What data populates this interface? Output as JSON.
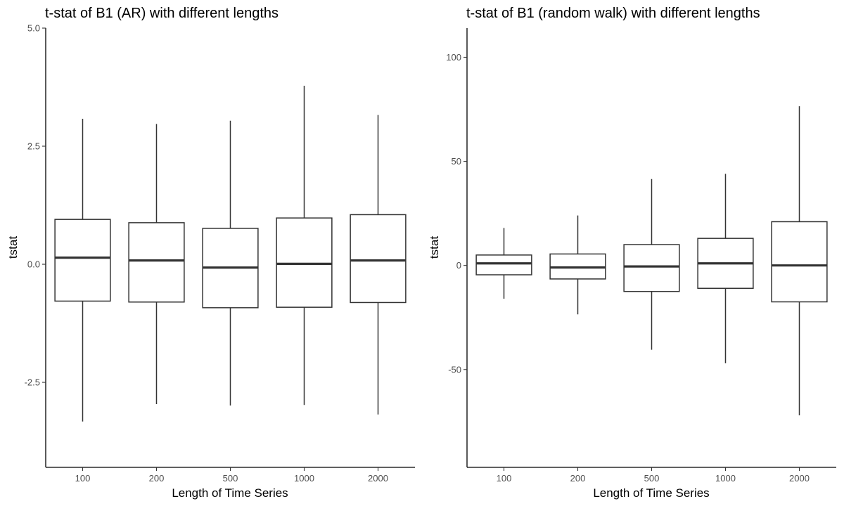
{
  "chart_data": [
    {
      "type": "box",
      "title": "t-stat of B1 (AR) with different lengths",
      "xlabel": "Length of Time Series",
      "ylabel": "tstat",
      "categories": [
        "100",
        "200",
        "500",
        "1000",
        "2000"
      ],
      "yticks": [
        5.0,
        2.5,
        0.0,
        -2.5
      ],
      "ytick_labels": [
        "5.0",
        "2.5",
        "0.0",
        "-2.5"
      ],
      "ylim": [
        -4.3,
        5.0
      ],
      "boxes": [
        {
          "min": -3.33,
          "q1": -0.78,
          "median": 0.14,
          "q3": 0.95,
          "max": 3.08
        },
        {
          "min": -2.96,
          "q1": -0.8,
          "median": 0.08,
          "q3": 0.88,
          "max": 2.97
        },
        {
          "min": -2.99,
          "q1": -0.92,
          "median": -0.07,
          "q3": 0.76,
          "max": 3.04
        },
        {
          "min": -2.98,
          "q1": -0.91,
          "median": 0.01,
          "q3": 0.98,
          "max": 3.78
        },
        {
          "min": -3.18,
          "q1": -0.81,
          "median": 0.08,
          "q3": 1.05,
          "max": 3.16
        }
      ],
      "grid": false,
      "legend": "none"
    },
    {
      "type": "box",
      "title": "t-stat of B1 (random walk) with different lengths",
      "xlabel": "Length of Time Series",
      "ylabel": "tstat",
      "categories": [
        "100",
        "200",
        "500",
        "1000",
        "2000"
      ],
      "yticks": [
        100,
        50,
        0,
        -50
      ],
      "ytick_labels": [
        "100",
        "50",
        "0",
        "-50"
      ],
      "ylim": [
        -97,
        114
      ],
      "boxes": [
        {
          "min": -16,
          "q1": -4.5,
          "median": 1,
          "q3": 5,
          "max": 18
        },
        {
          "min": -23.5,
          "q1": -6.5,
          "median": -1,
          "q3": 5.5,
          "max": 24
        },
        {
          "min": -40.5,
          "q1": -12.5,
          "median": -0.5,
          "q3": 10,
          "max": 41.5
        },
        {
          "min": -47,
          "q1": -11,
          "median": 1,
          "q3": 13,
          "max": 44
        },
        {
          "min": -72,
          "q1": -17.5,
          "median": 0,
          "q3": 21,
          "max": 76.5
        }
      ],
      "grid": false,
      "legend": "none"
    }
  ]
}
